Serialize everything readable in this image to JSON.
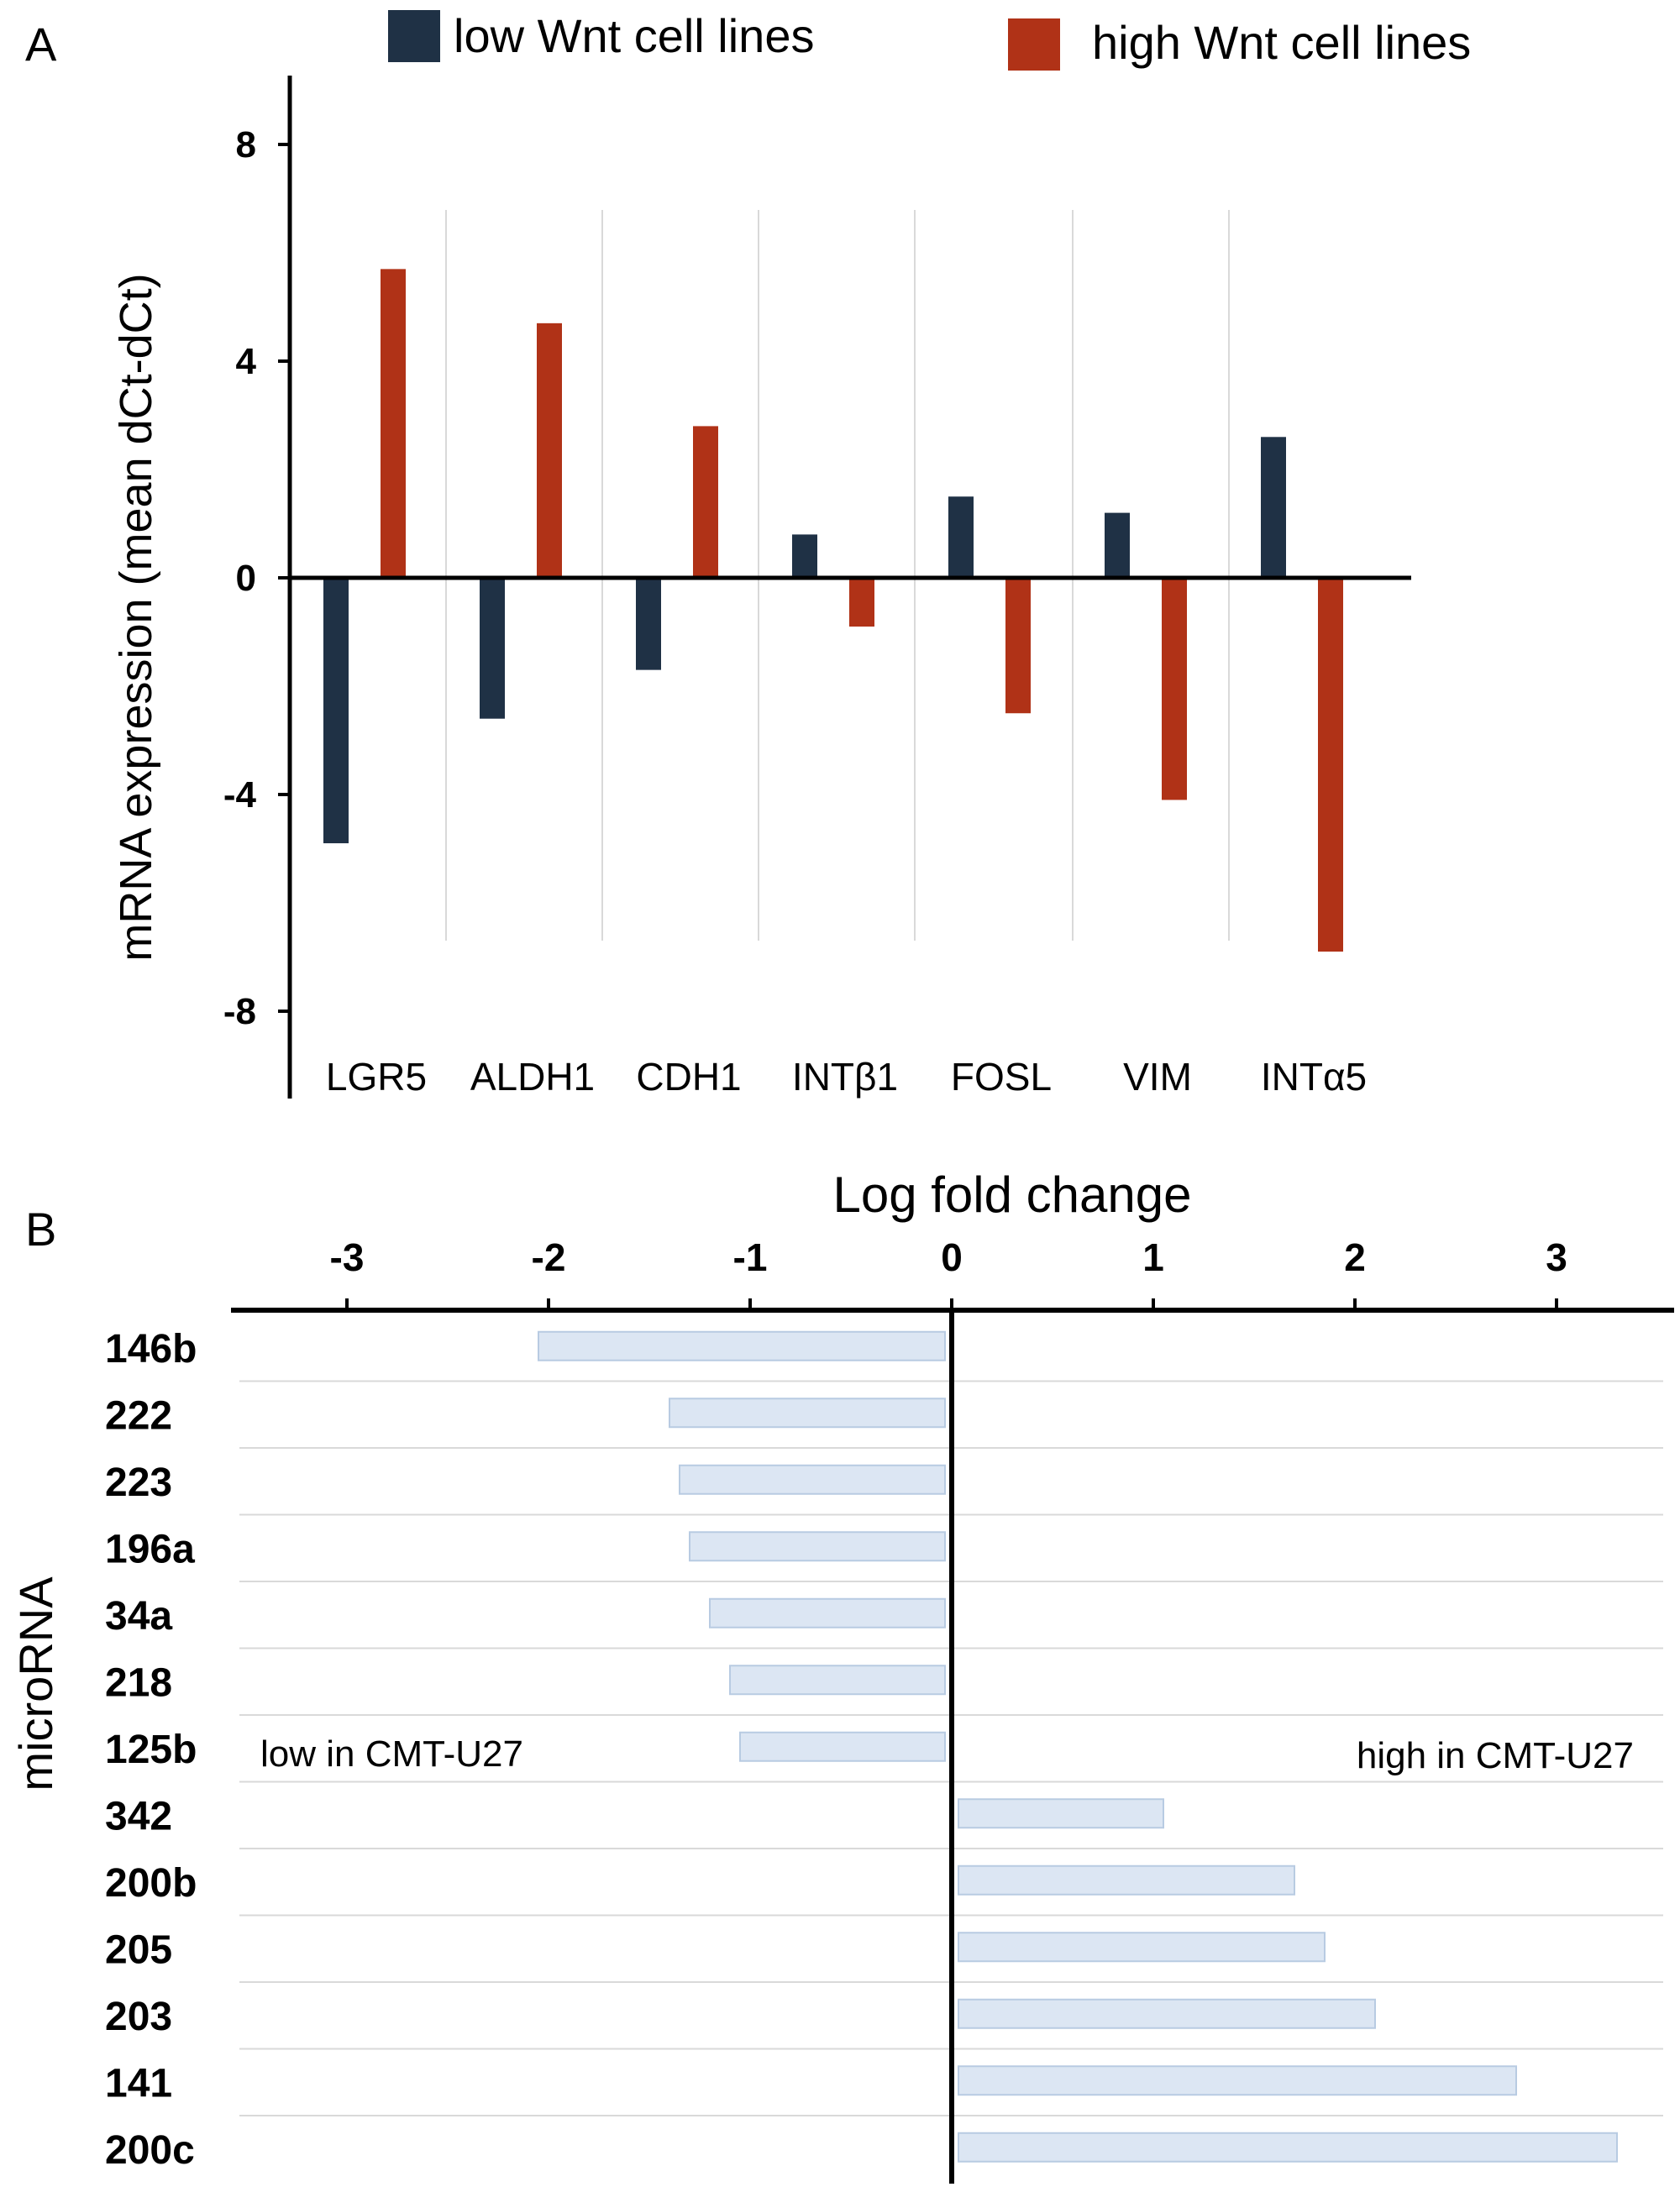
{
  "panels": {
    "a_letter": "A",
    "b_letter": "B"
  },
  "colors": {
    "low": "#1f3145",
    "high": "#b03217",
    "mirna_bar": "#dce6f3",
    "mirna_bar_stroke": "#b8cbe2",
    "grid": "#d9d9d9",
    "axis": "#000000"
  },
  "chart_data": [
    {
      "panel": "A",
      "type": "bar",
      "title": "",
      "xlabel": "",
      "ylabel": "mRNA expression (mean dCt-dCt)",
      "ylim": [
        -10,
        10
      ],
      "yticks": [
        -8,
        -4,
        0,
        4,
        8
      ],
      "ytick_labels": [
        "-8",
        "-4",
        "0",
        "4",
        "8"
      ],
      "categories": [
        "LGR5",
        "ALDH1",
        "CDH1",
        "INTβ1",
        "FOSL",
        "VIM",
        "INTα5"
      ],
      "series": [
        {
          "name": "low Wnt cell lines",
          "color": "#1f3145",
          "values": [
            -4.9,
            -2.6,
            -1.7,
            0.8,
            1.5,
            1.2,
            2.6
          ]
        },
        {
          "name": "high Wnt cell lines",
          "color": "#b03217",
          "values": [
            5.7,
            4.7,
            2.8,
            -0.9,
            -2.5,
            -4.1,
            -6.9
          ]
        }
      ],
      "legend": "top",
      "grid": "vertical separators"
    },
    {
      "panel": "B",
      "type": "bar",
      "orientation": "horizontal",
      "title": "",
      "xlabel": "Log fold change",
      "ylabel": "microRNA",
      "xlim": [
        -3.6,
        3.6
      ],
      "xticks": [
        -3,
        -2,
        -1,
        0,
        1,
        2,
        3
      ],
      "xtick_labels": [
        "-3",
        "-2",
        "-1",
        "0",
        "1",
        "2",
        "3"
      ],
      "categories": [
        "146b",
        "222",
        "223",
        "196a",
        "34a",
        "218",
        "125b",
        "342",
        "200b",
        "205",
        "203",
        "141",
        "200c"
      ],
      "values": [
        -2.05,
        -1.4,
        -1.35,
        -1.3,
        -1.2,
        -1.1,
        -1.05,
        1.05,
        1.7,
        1.85,
        2.1,
        2.8,
        3.3
      ],
      "annotations": [
        "low in CMT-U27",
        "high in CMT-U27"
      ],
      "grid": "horizontal separators"
    }
  ]
}
